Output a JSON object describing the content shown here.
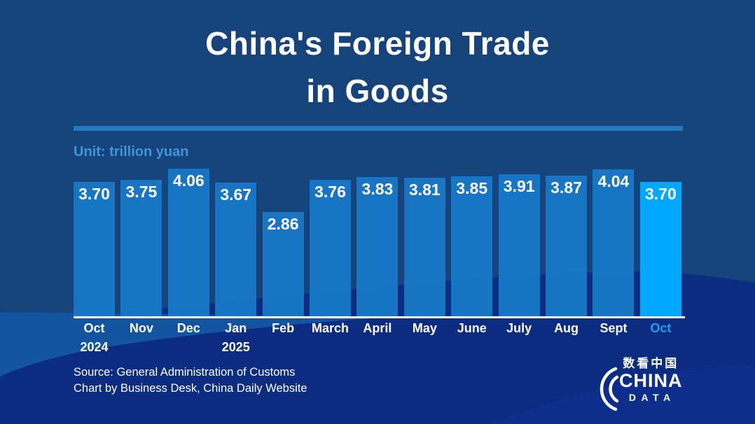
{
  "title": {
    "line1": "China's Foreign Trade",
    "line2": "in Goods"
  },
  "unit_label": "Unit: trillion yuan",
  "chart_data": {
    "type": "bar",
    "title": "China's Foreign Trade in Goods",
    "unit": "trillion yuan",
    "categories": [
      "Oct",
      "Nov",
      "Dec",
      "Jan",
      "Feb",
      "March",
      "April",
      "May",
      "June",
      "July",
      "Aug",
      "Sept",
      "Oct"
    ],
    "year_labels": [
      {
        "index": 0,
        "text": "2024"
      },
      {
        "index": 3,
        "text": "2025"
      }
    ],
    "values": [
      3.7,
      3.75,
      4.06,
      3.67,
      2.86,
      3.76,
      3.83,
      3.81,
      3.85,
      3.91,
      3.87,
      4.04,
      3.7
    ],
    "value_decimals": 2,
    "highlight_index": 12,
    "ylim": [
      0,
      4.06
    ],
    "grid": false,
    "legend": false
  },
  "source": {
    "line1": "Source: General Administration of Customs",
    "line2": "Chart by Business Desk, China Daily Website"
  },
  "logo": {
    "chinese": "数看中国",
    "line1": "CHINA",
    "line2": "DATA"
  },
  "colors": {
    "background_navy": "#15437A",
    "background_royal": "#0B2C80",
    "background_band": "#1254A0",
    "bar": "#187AC8",
    "bar_rgba": "rgba(24,122,200,0.93)",
    "bar_highlight": "#00A9FF",
    "divider": "#1E7AC6",
    "unit_text": "#3D95DB",
    "axis": "#FFFFFF",
    "value_text": "#FFFFFF",
    "month_text": "#FFFFFF",
    "month_highlight_text": "#1F9FF3"
  }
}
